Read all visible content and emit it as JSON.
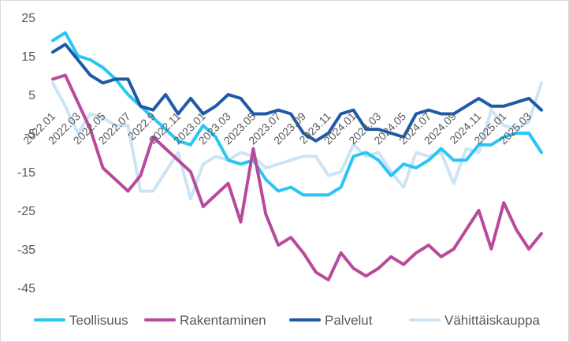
{
  "chart_data": {
    "type": "line",
    "title": "",
    "xlabel": "",
    "ylabel": "",
    "ylim": [
      -45,
      25
    ],
    "yticks": [
      25,
      15,
      5,
      -5,
      -15,
      -25,
      -35,
      -45
    ],
    "grid": false,
    "legend_position": "bottom",
    "x": [
      "2022.01",
      "2022.02",
      "2022.03",
      "2022.04",
      "2022.05",
      "2022.06",
      "2022.07",
      "2022.08",
      "2022.09",
      "2022.10",
      "2022.11",
      "2022.12",
      "2023.01",
      "2023.02",
      "2023.03",
      "2023.04",
      "2023.05",
      "2023.06",
      "2023.07",
      "2023.08",
      "2023.09",
      "2023.10",
      "2023.11",
      "2023.12",
      "2024.01",
      "2024.02",
      "2024.03",
      "2024.04",
      "2024.05",
      "2024.06",
      "2024.07",
      "2024.08",
      "2024.09",
      "2024.10",
      "2024.11",
      "2024.12",
      "2025.01",
      "2025.02",
      "2025.03",
      "2025.04"
    ],
    "xtick_labels": [
      "2022.01",
      "2022.03",
      "2022.05",
      "2022.07",
      "2022.9",
      "2022.11",
      "2023.01",
      "2023.03",
      "2023.05",
      "2023.07",
      "2023.09",
      "2023.11",
      "2024.01",
      "2024.03",
      "2024.05",
      "2024.07",
      "2024.09",
      "2024.11",
      "2025.01",
      "2025.03"
    ],
    "series": [
      {
        "name": "Teollisuus",
        "color": "#29c5f6",
        "values": [
          19,
          21,
          15,
          14,
          12,
          9,
          5,
          2,
          -1,
          -4,
          -7,
          -8,
          -3,
          -6,
          -12,
          -13,
          -12,
          -17,
          -20,
          -19,
          -21,
          -21,
          -21,
          -19,
          -11,
          -10,
          -12,
          -16,
          -13,
          -14,
          -12,
          -9,
          -12,
          -12,
          -8,
          -8,
          -6,
          -5,
          -5,
          -10
        ]
      },
      {
        "name": "Rakentaminen",
        "color": "#b94a9b",
        "values": [
          9,
          10,
          3,
          -4,
          -14,
          -17,
          -20,
          -16,
          -6,
          -9,
          -12,
          -15,
          -24,
          -21,
          -18,
          -28,
          -9,
          -26,
          -34,
          -32,
          -36,
          -41,
          -43,
          -36,
          -40,
          -42,
          -40,
          -37,
          -39,
          -36,
          -34,
          -37,
          -35,
          -30,
          -25,
          -35,
          -23,
          -30,
          -35,
          -31
        ]
      },
      {
        "name": "Palvelut",
        "color": "#1f5aa6",
        "values": [
          16,
          18,
          14,
          10,
          8,
          9,
          9,
          2,
          1,
          5,
          0,
          4,
          0,
          2,
          5,
          4,
          0,
          0,
          1,
          0,
          -5,
          -7,
          -5,
          0,
          1,
          -4,
          -4,
          -5,
          -6,
          0,
          1,
          0,
          0,
          2,
          4,
          2,
          2,
          3,
          4,
          1
        ]
      },
      {
        "name": "Vähittäiskauppa",
        "color": "#cce4f5",
        "values": [
          8,
          2,
          -5,
          0,
          -1,
          -3,
          -3,
          -20,
          -20,
          -15,
          -10,
          -22,
          -13,
          -11,
          -12,
          -10,
          -11,
          -14,
          -13,
          -12,
          -11,
          -11,
          -16,
          -15,
          -8,
          -11,
          -10,
          -15,
          -19,
          -10,
          -11,
          -10,
          -18,
          -9,
          -10,
          1,
          -3,
          -4,
          -2,
          8
        ]
      }
    ]
  }
}
